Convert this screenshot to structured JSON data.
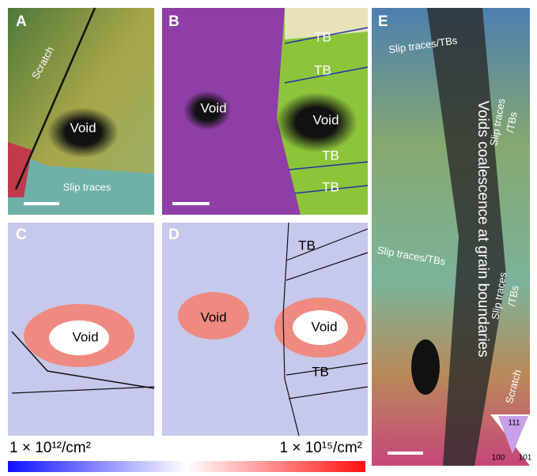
{
  "panels": {
    "A": {
      "label": "A",
      "annotations": [
        "Scratch",
        "Void",
        "Slip traces"
      ]
    },
    "B": {
      "label": "B",
      "annotations": [
        "Void",
        "Void",
        "TB",
        "TB",
        "TB",
        "TB"
      ]
    },
    "C": {
      "label": "C",
      "annotations": [
        "Void"
      ]
    },
    "D": {
      "label": "D",
      "annotations": [
        "Void",
        "Void",
        "TB",
        "TB"
      ]
    },
    "E": {
      "label": "E",
      "annotations": [
        "Slip traces/TBs",
        [
          "Slip traces",
          "/TBs"
        ],
        "Voids coalescence at grain boundaries",
        "Slip traces/TBs",
        [
          "Slip traces",
          "/TBs"
        ],
        "Scratch"
      ],
      "legend": [
        "111",
        "100",
        "101"
      ]
    }
  },
  "colorbar": {
    "min_label": "1 × 10¹²/cm²",
    "max_label": "1 × 10¹⁵/cm²"
  }
}
